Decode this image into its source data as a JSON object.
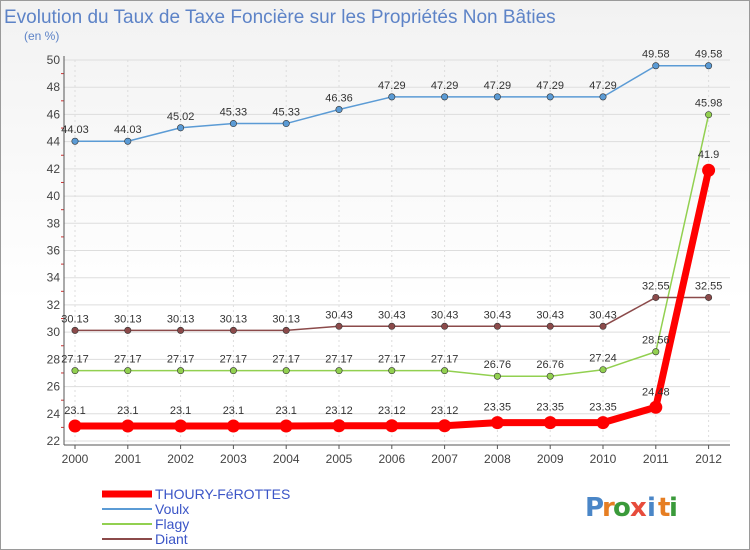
{
  "chart_data": {
    "type": "line",
    "title": "Evolution du Taux de Taxe Foncière sur les Propriétés Non Bâties",
    "subtitle": "(en %)",
    "xlabel": "",
    "ylabel": "(en %)",
    "categories": [
      "2000",
      "2001",
      "2002",
      "2003",
      "2004",
      "2005",
      "2006",
      "2007",
      "2008",
      "2009",
      "2010",
      "2011",
      "2012"
    ],
    "ylim": [
      22,
      50
    ],
    "yticks": [
      "22",
      "24",
      "26",
      "28",
      "30",
      "32",
      "34",
      "36",
      "38",
      "40",
      "42",
      "44",
      "46",
      "48",
      "50"
    ],
    "grid": true,
    "series": [
      {
        "name": "Voulx",
        "color": "#5b9bd5",
        "values": [
          44.03,
          44.03,
          45.02,
          45.33,
          45.33,
          46.36,
          47.29,
          47.29,
          47.29,
          47.29,
          47.29,
          49.58,
          49.58
        ],
        "labels": [
          "44.03",
          "44.03",
          "45.02",
          "45.33",
          "45.33",
          "46.36",
          "47.29",
          "47.29",
          "47.29",
          "47.29",
          "47.29",
          "49.58",
          "49.58"
        ]
      },
      {
        "name": "Flagy",
        "color": "#92d050",
        "values": [
          27.17,
          27.17,
          27.17,
          27.17,
          27.17,
          27.17,
          27.17,
          27.17,
          26.76,
          26.76,
          27.24,
          28.56,
          45.98
        ],
        "labels": [
          "27.17",
          "27.17",
          "27.17",
          "27.17",
          "27.17",
          "27.17",
          "27.17",
          "27.17",
          "26.76",
          "26.76",
          "27.24",
          "28.56",
          "45.98"
        ]
      },
      {
        "name": "Diant",
        "color": "#8b4a4a",
        "values": [
          30.13,
          30.13,
          30.13,
          30.13,
          30.13,
          30.43,
          30.43,
          30.43,
          30.43,
          30.43,
          30.43,
          32.55,
          32.55
        ],
        "labels": [
          "30.13",
          "30.13",
          "30.13",
          "30.13",
          "30.13",
          "30.43",
          "30.43",
          "30.43",
          "30.43",
          "30.43",
          "30.43",
          "32.55",
          "32.55"
        ]
      },
      {
        "name": "THOURY-FéROTTES",
        "color": "#ff0000",
        "values": [
          23.1,
          23.1,
          23.1,
          23.1,
          23.1,
          23.12,
          23.12,
          23.12,
          23.35,
          23.35,
          23.35,
          24.48,
          41.9
        ],
        "labels": [
          "23.1",
          "23.1",
          "23.1",
          "23.1",
          "23.1",
          "23.12",
          "23.12",
          "23.12",
          "23.35",
          "23.35",
          "23.35",
          "24.48",
          "41.9"
        ]
      }
    ],
    "legend": [
      "THOURY-FéROTTES",
      "Voulx",
      "Flagy",
      "Diant"
    ],
    "legend_position": "bottom-left"
  },
  "logo": {
    "letters": [
      "P",
      "r",
      "o",
      "x",
      "i",
      "t",
      "i"
    ],
    "colors": [
      "#4a86c7",
      "#e67e22",
      "#3a9a3a",
      "#e74c3c",
      "#4a86c7",
      "#e67e22",
      "#3a9a3a"
    ]
  }
}
